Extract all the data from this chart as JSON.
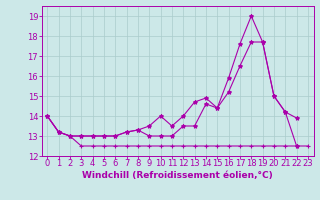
{
  "xlabel": "Windchill (Refroidissement éolien,°C)",
  "background_color": "#cce8e8",
  "grid_color": "#aacccc",
  "line_color": "#aa00aa",
  "x": [
    0,
    1,
    2,
    3,
    4,
    5,
    6,
    7,
    8,
    9,
    10,
    11,
    12,
    13,
    14,
    15,
    16,
    17,
    18,
    19,
    20,
    21,
    22,
    23
  ],
  "line_bottom": [
    14.0,
    13.2,
    13.0,
    12.5,
    12.5,
    12.5,
    12.5,
    12.5,
    12.5,
    12.5,
    12.5,
    12.5,
    12.5,
    12.5,
    12.5,
    12.5,
    12.5,
    12.5,
    12.5,
    12.5,
    12.5,
    12.5,
    12.5,
    12.5
  ],
  "line_mid": [
    14.0,
    13.2,
    13.0,
    13.0,
    13.0,
    13.0,
    13.0,
    13.2,
    13.3,
    13.5,
    14.0,
    13.5,
    14.0,
    14.7,
    14.9,
    14.4,
    15.2,
    16.5,
    17.7,
    17.7,
    15.0,
    14.2,
    12.5,
    null
  ],
  "line_top": [
    14.0,
    13.2,
    13.0,
    13.0,
    13.0,
    13.0,
    13.0,
    13.2,
    13.3,
    13.0,
    13.0,
    13.0,
    13.5,
    13.5,
    14.6,
    14.4,
    15.9,
    17.6,
    19.0,
    17.7,
    15.0,
    14.2,
    13.9,
    null
  ],
  "ylim": [
    12,
    19.5
  ],
  "xlim": [
    -0.5,
    23.5
  ],
  "yticks": [
    12,
    13,
    14,
    15,
    16,
    17,
    18,
    19
  ],
  "xticks": [
    0,
    1,
    2,
    3,
    4,
    5,
    6,
    7,
    8,
    9,
    10,
    11,
    12,
    13,
    14,
    15,
    16,
    17,
    18,
    19,
    20,
    21,
    22,
    23
  ],
  "fontsize_tick": 6,
  "fontsize_label": 6.5
}
